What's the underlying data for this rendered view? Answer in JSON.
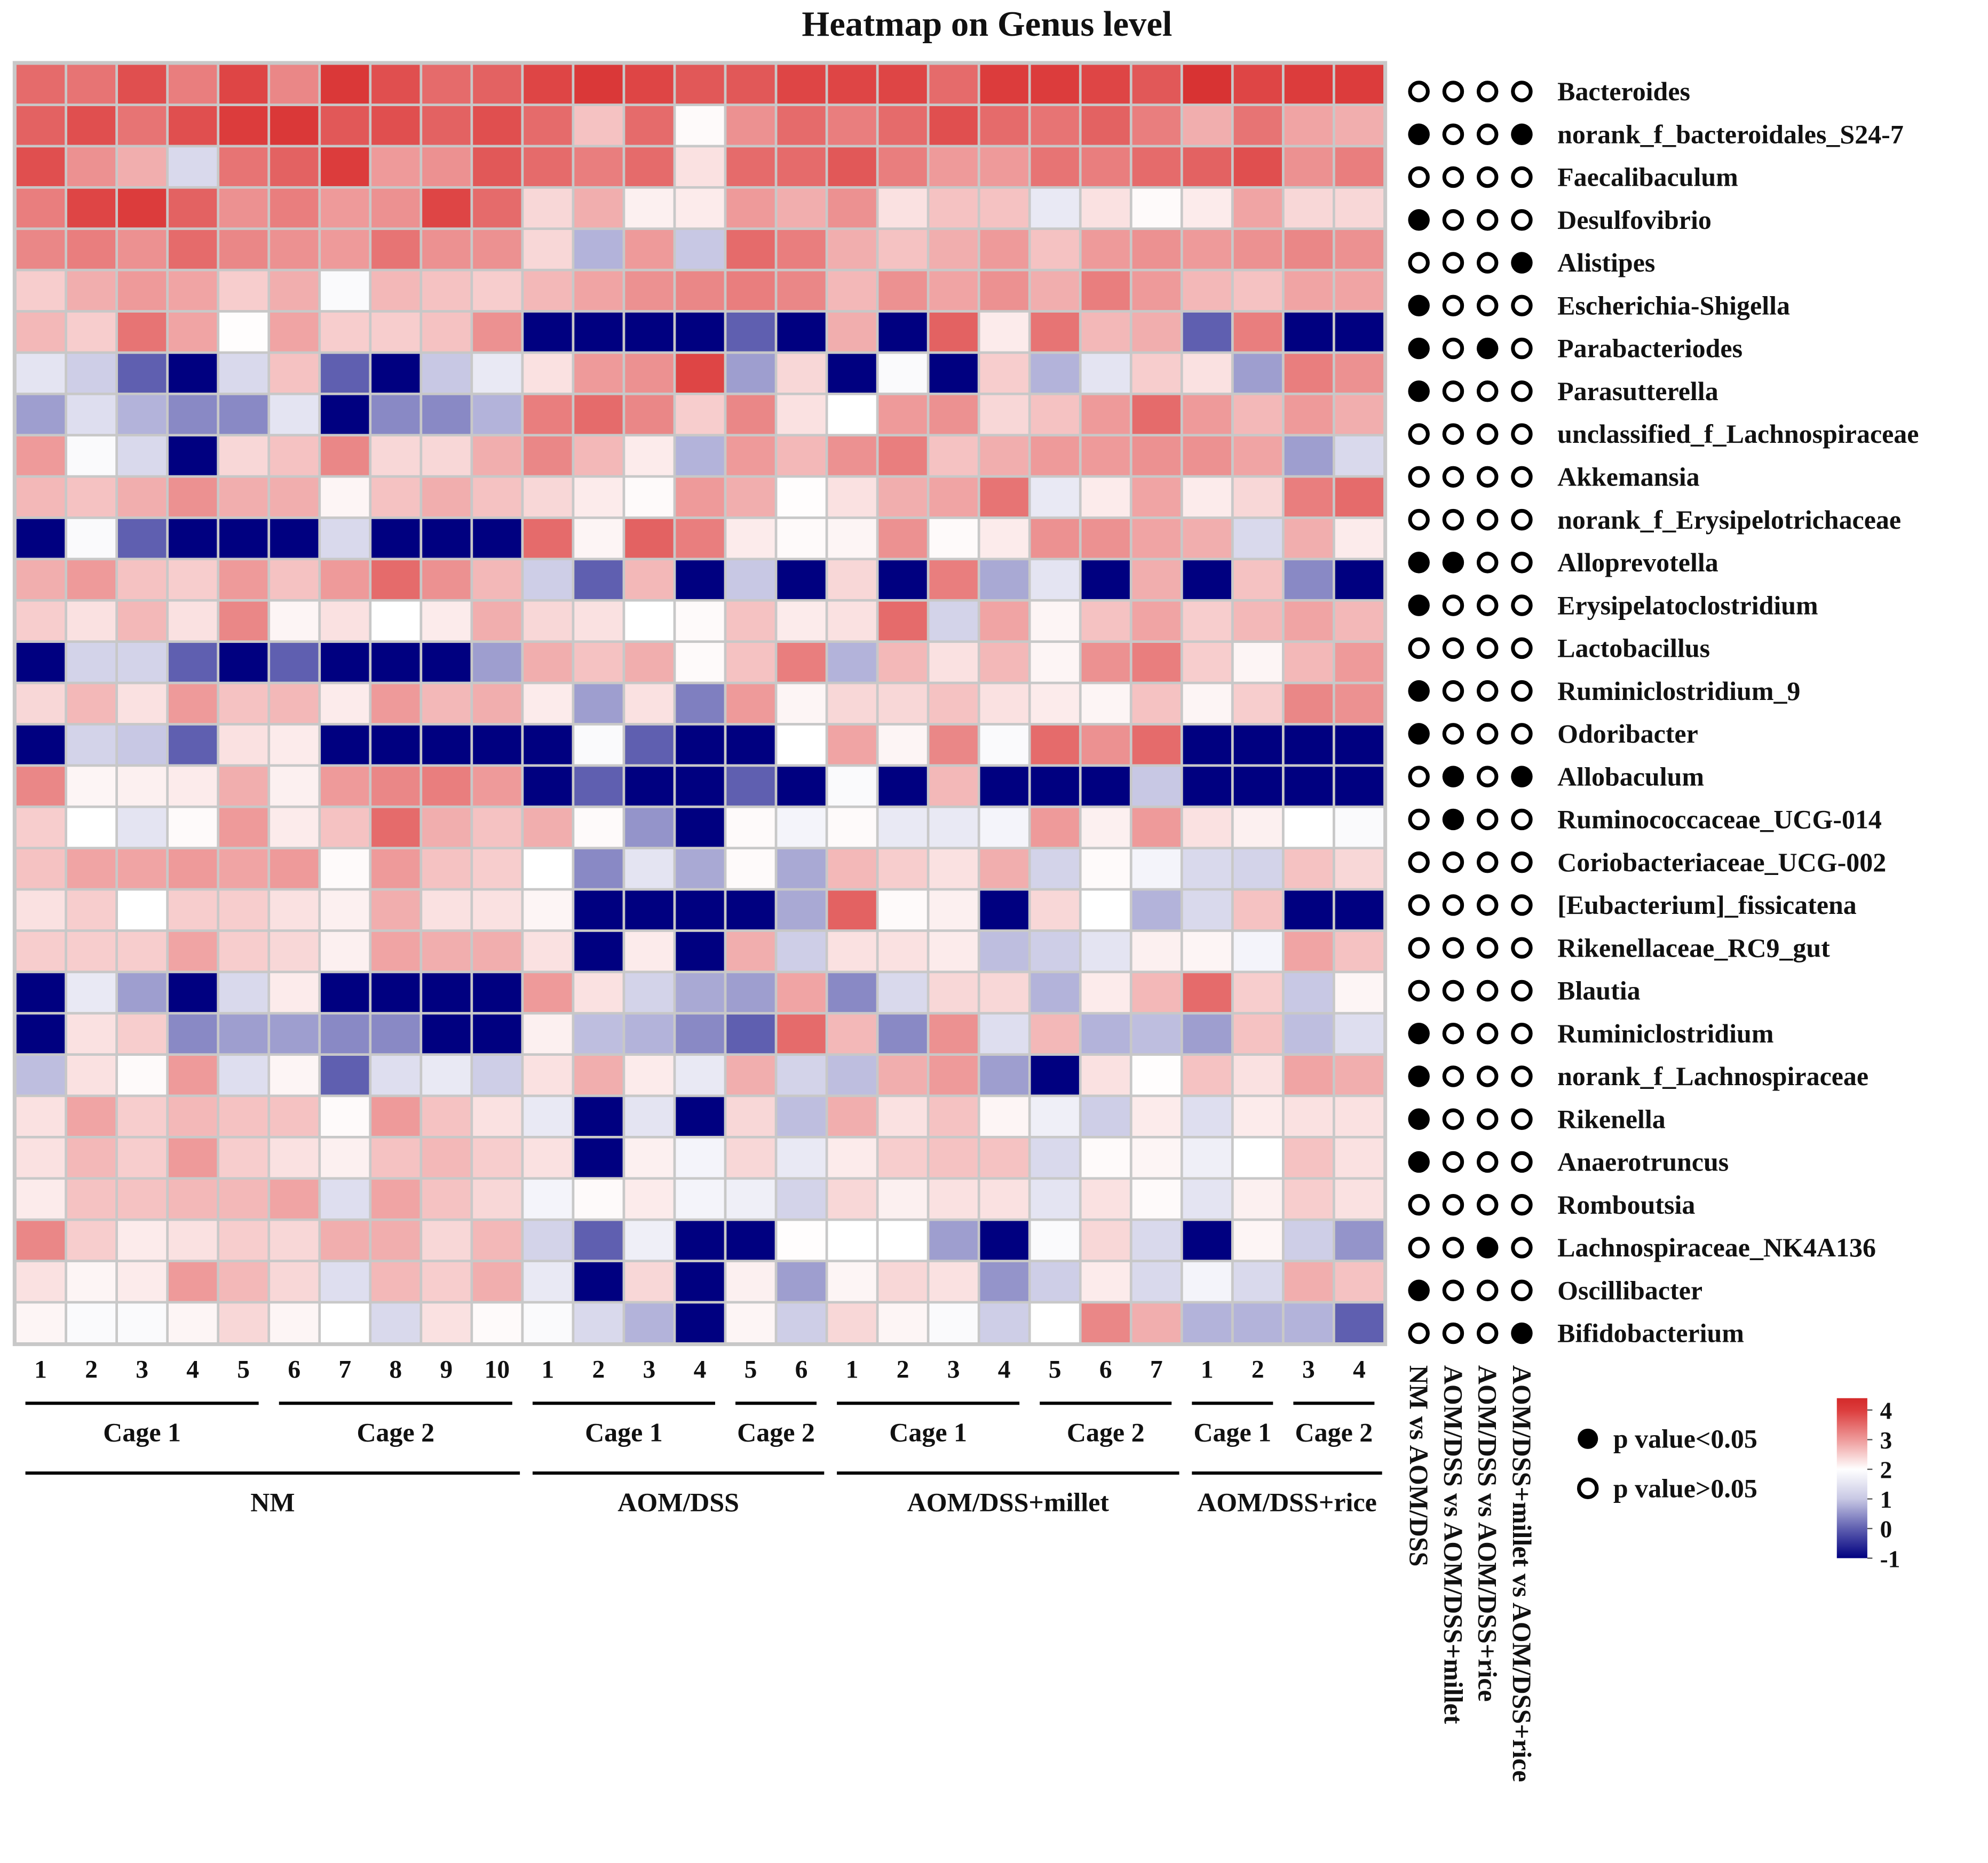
{
  "chart_data": {
    "type": "heatmap",
    "title": "Heatmap on Genus level",
    "row_labels": [
      "Bacteroides",
      "norank_f_bacteroidales_S24-7",
      "Faecalibaculum",
      "Desulfovibrio",
      "Alistipes",
      "Escherichia-Shigella",
      "Parabacteriodes",
      "Parasutterella",
      "unclassified_f_Lachnospiraceae",
      "Akkemansia",
      "norank_f_Erysipelotrichaceae",
      "Alloprevotella",
      "Erysipelatoclostridium",
      "Lactobacillus",
      "Ruminiclostridium_9",
      "Odoribacter",
      "Allobaculum",
      "Ruminococcaceae_UCG-014",
      "Coriobacteriaceae_UCG-002",
      "[Eubacterium]_fissicatena",
      "Rikenellaceae_RC9_gut",
      "Blautia",
      "Ruminiclostridium",
      "norank_f_Lachnospiraceae",
      "Rikenella",
      "Anaerotruncus",
      "Romboutsia",
      "Lachnospiraceae_NK4A136",
      "Oscillibacter",
      "Bifidobacterium"
    ],
    "column_labels": [
      "1",
      "2",
      "3",
      "4",
      "5",
      "6",
      "7",
      "8",
      "9",
      "10",
      "1",
      "2",
      "3",
      "4",
      "5",
      "6",
      "1",
      "2",
      "3",
      "4",
      "5",
      "6",
      "7",
      "1",
      "2",
      "3",
      "4"
    ],
    "cages": [
      {
        "label": "Cage 1",
        "columns": [
          0,
          4
        ]
      },
      {
        "label": "Cage 2",
        "columns": [
          5,
          9
        ]
      },
      {
        "label": "Cage 1",
        "columns": [
          10,
          13
        ]
      },
      {
        "label": "Cage 2",
        "columns": [
          14,
          15
        ]
      },
      {
        "label": "Cage 1",
        "columns": [
          16,
          19
        ]
      },
      {
        "label": "Cage 2",
        "columns": [
          20,
          22
        ]
      },
      {
        "label": "Cage 1",
        "columns": [
          23,
          24
        ]
      },
      {
        "label": "Cage 2",
        "columns": [
          25,
          26
        ]
      }
    ],
    "groups": [
      {
        "label": "NM",
        "columns": [
          0,
          9
        ]
      },
      {
        "label": "AOM/DSS",
        "columns": [
          10,
          15
        ]
      },
      {
        "label": "AOM/DSS+millet",
        "columns": [
          16,
          22
        ]
      },
      {
        "label": "AOM/DSS+rice",
        "columns": [
          23,
          26
        ]
      }
    ],
    "matrix": [
      [
        3.5,
        3.4,
        3.8,
        3.3,
        3.9,
        3.2,
        4.1,
        3.8,
        3.5,
        3.6,
        3.9,
        4.1,
        3.9,
        3.7,
        3.7,
        3.9,
        3.9,
        3.9,
        3.5,
        4.0,
        4.0,
        3.9,
        3.7,
        4.2,
        3.9,
        4.0,
        4.0
      ],
      [
        3.6,
        3.8,
        3.4,
        3.8,
        4.0,
        4.1,
        3.7,
        3.8,
        3.6,
        3.8,
        3.5,
        2.6,
        3.5,
        2.05,
        3.1,
        3.5,
        3.3,
        3.5,
        3.8,
        3.5,
        3.4,
        3.6,
        3.3,
        2.8,
        3.4,
        2.9,
        2.8
      ],
      [
        3.8,
        3.1,
        2.8,
        1.3,
        3.4,
        3.6,
        4.0,
        3.0,
        3.1,
        3.7,
        3.5,
        3.3,
        3.5,
        2.3,
        3.5,
        3.5,
        3.7,
        3.3,
        3.0,
        3.0,
        3.4,
        3.3,
        3.5,
        3.6,
        3.8,
        3.1,
        3.3
      ],
      [
        3.3,
        3.9,
        4.0,
        3.6,
        3.1,
        3.3,
        3.0,
        3.1,
        3.9,
        3.5,
        2.4,
        2.8,
        2.15,
        2.2,
        3.0,
        2.8,
        3.1,
        2.3,
        2.6,
        2.6,
        1.6,
        2.3,
        2.05,
        2.2,
        2.9,
        2.4,
        2.4
      ],
      [
        3.2,
        3.3,
        3.1,
        3.5,
        3.2,
        3.1,
        3.0,
        3.4,
        3.1,
        3.1,
        2.4,
        0.8,
        3.0,
        1.0,
        3.5,
        3.3,
        2.8,
        2.6,
        2.8,
        3.0,
        2.6,
        3.0,
        3.1,
        3.0,
        3.1,
        3.2,
        3.1
      ],
      [
        2.5,
        2.8,
        3.0,
        2.9,
        2.5,
        2.8,
        1.9,
        2.7,
        2.6,
        2.5,
        2.7,
        2.9,
        3.1,
        3.2,
        3.3,
        3.2,
        2.7,
        3.1,
        2.9,
        3.1,
        2.8,
        3.3,
        3.0,
        2.7,
        2.6,
        2.9,
        2.9
      ],
      [
        2.7,
        2.5,
        3.4,
        2.9,
        2.02,
        2.9,
        2.5,
        2.5,
        2.6,
        3.1,
        -1,
        -1,
        -1,
        -1,
        0,
        -1,
        2.8,
        -1,
        3.6,
        2.2,
        3.4,
        2.7,
        2.8,
        0,
        3.3,
        -1,
        -1
      ],
      [
        1.5,
        1.1,
        0,
        -1,
        1.3,
        2.6,
        0,
        -1,
        1.0,
        1.6,
        2.3,
        3.0,
        3.1,
        3.9,
        0.6,
        2.4,
        -1,
        1.9,
        -1,
        2.5,
        0.8,
        1.5,
        2.5,
        2.3,
        0.6,
        3.3,
        3.1
      ],
      [
        0.6,
        1.4,
        0.8,
        0.4,
        0.4,
        1.5,
        -1,
        0.4,
        0.4,
        0.8,
        3.3,
        3.5,
        3.2,
        2.5,
        3.2,
        2.3,
        2.0,
        3.0,
        3.1,
        2.4,
        2.6,
        3.0,
        3.5,
        3.0,
        2.7,
        3.0,
        2.8
      ],
      [
        3.0,
        1.9,
        1.3,
        -1,
        2.4,
        2.6,
        3.2,
        2.4,
        2.4,
        2.8,
        3.2,
        2.7,
        2.2,
        0.8,
        3.0,
        2.7,
        3.1,
        3.3,
        2.6,
        2.8,
        3.0,
        3.0,
        3.1,
        3.1,
        2.9,
        0.6,
        1.3
      ],
      [
        2.7,
        2.6,
        2.8,
        3.1,
        2.8,
        2.8,
        2.1,
        2.6,
        2.8,
        2.6,
        2.4,
        2.2,
        2.05,
        3.0,
        2.8,
        2.02,
        2.3,
        2.8,
        2.9,
        3.4,
        1.6,
        2.2,
        2.9,
        2.2,
        2.4,
        3.3,
        3.5
      ],
      [
        -1,
        1.9,
        0,
        -1,
        -1,
        -1,
        1.3,
        -1,
        -1,
        -1,
        3.5,
        2.1,
        3.6,
        3.3,
        2.2,
        2.05,
        2.1,
        3.1,
        2.05,
        2.2,
        3.1,
        3.1,
        2.9,
        2.8,
        1.3,
        2.8,
        2.2
      ],
      [
        2.8,
        3.0,
        2.6,
        2.5,
        3.0,
        2.6,
        3.0,
        3.5,
        3.1,
        2.7,
        1.1,
        0,
        2.7,
        -1,
        1.0,
        -1,
        2.4,
        -1,
        3.3,
        0.7,
        1.5,
        -1,
        2.8,
        -1,
        2.6,
        0.4,
        -1
      ],
      [
        2.5,
        2.3,
        2.7,
        2.3,
        3.2,
        2.1,
        2.3,
        2.0,
        2.2,
        2.8,
        2.4,
        2.3,
        2.0,
        2.05,
        2.6,
        2.2,
        2.3,
        3.5,
        1.2,
        2.9,
        2.1,
        2.6,
        2.9,
        2.5,
        2.7,
        2.9,
        2.7
      ],
      [
        -1,
        1.2,
        1.2,
        0,
        -1,
        0,
        -1,
        -1,
        -1,
        0.6,
        2.8,
        2.6,
        2.8,
        2.05,
        2.6,
        3.3,
        0.8,
        2.7,
        2.3,
        2.7,
        2.1,
        3.1,
        3.3,
        2.5,
        2.1,
        2.7,
        3.0
      ],
      [
        2.4,
        2.7,
        2.3,
        3.0,
        2.6,
        2.7,
        2.2,
        3.0,
        2.7,
        2.8,
        2.2,
        0.6,
        2.3,
        0.3,
        3.0,
        2.1,
        2.4,
        2.4,
        2.6,
        2.3,
        2.2,
        2.1,
        2.6,
        2.1,
        2.5,
        3.2,
        3.1
      ],
      [
        -1,
        1.2,
        1.0,
        0,
        2.3,
        2.2,
        -1,
        -1,
        -1,
        -1,
        -1,
        1.9,
        0,
        -1,
        -1,
        2.0,
        2.9,
        2.1,
        3.2,
        1.9,
        3.5,
        3.1,
        3.5,
        -1,
        -1,
        -1,
        -1
      ],
      [
        3.2,
        2.1,
        2.15,
        2.2,
        2.8,
        2.15,
        3.0,
        3.2,
        3.3,
        3.0,
        -1,
        0,
        -1,
        -1,
        0,
        -1,
        1.9,
        -1,
        2.7,
        -1,
        -1,
        -1,
        1.0,
        -1,
        -1,
        -1,
        -1
      ],
      [
        2.5,
        2.0,
        1.5,
        2.05,
        3.0,
        2.2,
        2.6,
        3.5,
        2.8,
        2.6,
        2.8,
        2.05,
        0.5,
        -1,
        2.05,
        1.8,
        2.05,
        1.6,
        1.6,
        1.8,
        3.0,
        2.15,
        3.0,
        2.3,
        2.15,
        2.0,
        1.9
      ],
      [
        2.6,
        2.9,
        2.9,
        3.0,
        2.9,
        3.0,
        2.05,
        3.0,
        2.6,
        2.5,
        2.0,
        0.4,
        1.5,
        0.7,
        2.05,
        0.7,
        2.7,
        2.5,
        2.3,
        2.8,
        1.2,
        2.05,
        1.8,
        1.3,
        1.2,
        2.6,
        2.4
      ],
      [
        2.3,
        2.5,
        2.0,
        2.5,
        2.5,
        2.3,
        2.15,
        2.8,
        2.3,
        2.3,
        2.1,
        -1,
        -1,
        -1,
        -1,
        0.7,
        3.6,
        2.05,
        2.15,
        -1,
        2.4,
        2.0,
        0.8,
        1.3,
        2.6,
        -1,
        -1
      ],
      [
        2.5,
        2.5,
        2.5,
        2.9,
        2.5,
        2.4,
        2.15,
        2.9,
        2.8,
        2.8,
        2.3,
        -1,
        2.2,
        -1,
        2.8,
        1.1,
        2.3,
        2.3,
        2.2,
        0.9,
        1.1,
        1.5,
        2.15,
        2.1,
        1.8,
        2.9,
        2.6
      ],
      [
        -1,
        1.6,
        0.6,
        -1,
        1.3,
        2.2,
        -1,
        -1,
        -1,
        -1,
        3.0,
        2.3,
        1.2,
        0.7,
        0.6,
        2.9,
        0.4,
        1.3,
        2.4,
        2.4,
        0.8,
        2.2,
        2.7,
        3.5,
        2.5,
        1.0,
        2.1
      ],
      [
        -1,
        2.3,
        2.5,
        0.4,
        0.6,
        0.6,
        0.4,
        0.4,
        -1,
        -1,
        2.15,
        0.9,
        0.8,
        0.4,
        0,
        3.5,
        2.7,
        0.4,
        3.1,
        1.4,
        2.7,
        0.8,
        0.9,
        0.6,
        2.6,
        0.9,
        1.4
      ],
      [
        0.9,
        2.3,
        2.05,
        3.0,
        1.4,
        2.1,
        0,
        1.4,
        1.6,
        1.1,
        2.3,
        2.8,
        2.2,
        1.6,
        2.8,
        1.2,
        0.9,
        2.8,
        3.0,
        0.6,
        -1,
        2.3,
        2.02,
        2.6,
        2.3,
        2.9,
        2.8
      ],
      [
        2.3,
        2.9,
        2.5,
        2.7,
        2.6,
        2.6,
        2.05,
        3.0,
        2.6,
        2.3,
        1.6,
        -1,
        1.5,
        -1,
        2.4,
        0.9,
        2.8,
        2.3,
        2.6,
        2.1,
        1.7,
        1.1,
        2.2,
        1.4,
        2.2,
        2.3,
        2.3
      ],
      [
        2.3,
        2.7,
        2.5,
        3.0,
        2.5,
        2.3,
        2.15,
        2.6,
        2.7,
        2.5,
        2.3,
        -1,
        2.15,
        1.8,
        2.4,
        1.6,
        2.2,
        2.5,
        2.6,
        2.6,
        1.3,
        2.05,
        2.1,
        1.7,
        2.0,
        2.6,
        2.3
      ],
      [
        2.2,
        2.6,
        2.6,
        2.7,
        2.7,
        2.9,
        1.4,
        2.9,
        2.6,
        2.4,
        1.8,
        2.05,
        2.2,
        1.8,
        1.7,
        1.2,
        2.4,
        2.15,
        2.3,
        2.3,
        1.5,
        2.3,
        2.05,
        1.5,
        2.15,
        2.5,
        2.3
      ],
      [
        3.2,
        2.5,
        2.2,
        2.3,
        2.5,
        2.4,
        2.8,
        2.8,
        2.4,
        2.7,
        1.2,
        0,
        1.7,
        -1,
        -1,
        2.02,
        2.0,
        2.0,
        0.6,
        -1,
        1.9,
        2.4,
        1.3,
        -1,
        2.1,
        1.1,
        0.5
      ],
      [
        2.3,
        2.1,
        2.2,
        3.0,
        2.7,
        2.4,
        1.4,
        2.7,
        2.5,
        2.8,
        1.6,
        -1,
        2.4,
        -1,
        2.15,
        0.6,
        2.1,
        2.4,
        2.3,
        0.5,
        1.1,
        2.2,
        1.3,
        1.8,
        1.3,
        2.8,
        2.6
      ],
      [
        2.1,
        1.9,
        1.9,
        2.1,
        2.4,
        2.1,
        2.0,
        1.3,
        2.3,
        2.05,
        1.9,
        1.3,
        0.8,
        -1,
        2.1,
        1.1,
        2.4,
        2.1,
        1.9,
        1.1,
        2.0,
        3.2,
        2.8,
        0.8,
        0.8,
        0.8,
        0
      ]
    ],
    "color_scale": {
      "range": [
        -1,
        4.4
      ],
      "stops": [
        {
          "value": -1,
          "color": "#000080"
        },
        {
          "value": 0,
          "color": "#5f5fb0"
        },
        {
          "value": 1,
          "color": "#c8c8e4"
        },
        {
          "value": 2,
          "color": "#ffffff"
        },
        {
          "value": 3,
          "color": "#ee9a9a"
        },
        {
          "value": 4,
          "color": "#dc3c3c"
        },
        {
          "value": 4.4,
          "color": "#d42a2a"
        }
      ],
      "ticks": [
        "4",
        "3",
        "2",
        "1",
        "0",
        "-1"
      ],
      "tick_values": [
        4,
        3,
        2,
        1,
        0,
        -1
      ]
    },
    "comparisons": [
      "NM vs AOM/DSS",
      "AOM/DSS vs AOM/DSS+millet",
      "AOM/DSS vs AOM/DSS+rice",
      "AOM/DSS+millet vs AOM/DSS+rice"
    ],
    "significance": [
      [
        0,
        0,
        0,
        0
      ],
      [
        1,
        0,
        0,
        1
      ],
      [
        0,
        0,
        0,
        0
      ],
      [
        1,
        0,
        0,
        0
      ],
      [
        0,
        0,
        0,
        1
      ],
      [
        1,
        0,
        0,
        0
      ],
      [
        1,
        0,
        1,
        0
      ],
      [
        1,
        0,
        0,
        0
      ],
      [
        0,
        0,
        0,
        0
      ],
      [
        0,
        0,
        0,
        0
      ],
      [
        0,
        0,
        0,
        0
      ],
      [
        1,
        1,
        0,
        0
      ],
      [
        1,
        0,
        0,
        0
      ],
      [
        0,
        0,
        0,
        0
      ],
      [
        1,
        0,
        0,
        0
      ],
      [
        1,
        0,
        0,
        0
      ],
      [
        0,
        1,
        0,
        1
      ],
      [
        0,
        1,
        0,
        0
      ],
      [
        0,
        0,
        0,
        0
      ],
      [
        0,
        0,
        0,
        0
      ],
      [
        0,
        0,
        0,
        0
      ],
      [
        0,
        0,
        0,
        0
      ],
      [
        1,
        0,
        0,
        0
      ],
      [
        1,
        0,
        0,
        0
      ],
      [
        1,
        0,
        0,
        0
      ],
      [
        1,
        0,
        0,
        0
      ],
      [
        0,
        0,
        0,
        0
      ],
      [
        0,
        0,
        1,
        0
      ],
      [
        1,
        0,
        0,
        0
      ],
      [
        0,
        0,
        0,
        1
      ]
    ],
    "legend": {
      "significant": "p value<0.05",
      "not_significant": "p value>0.05"
    },
    "grid_color": "#c8c8c8"
  }
}
